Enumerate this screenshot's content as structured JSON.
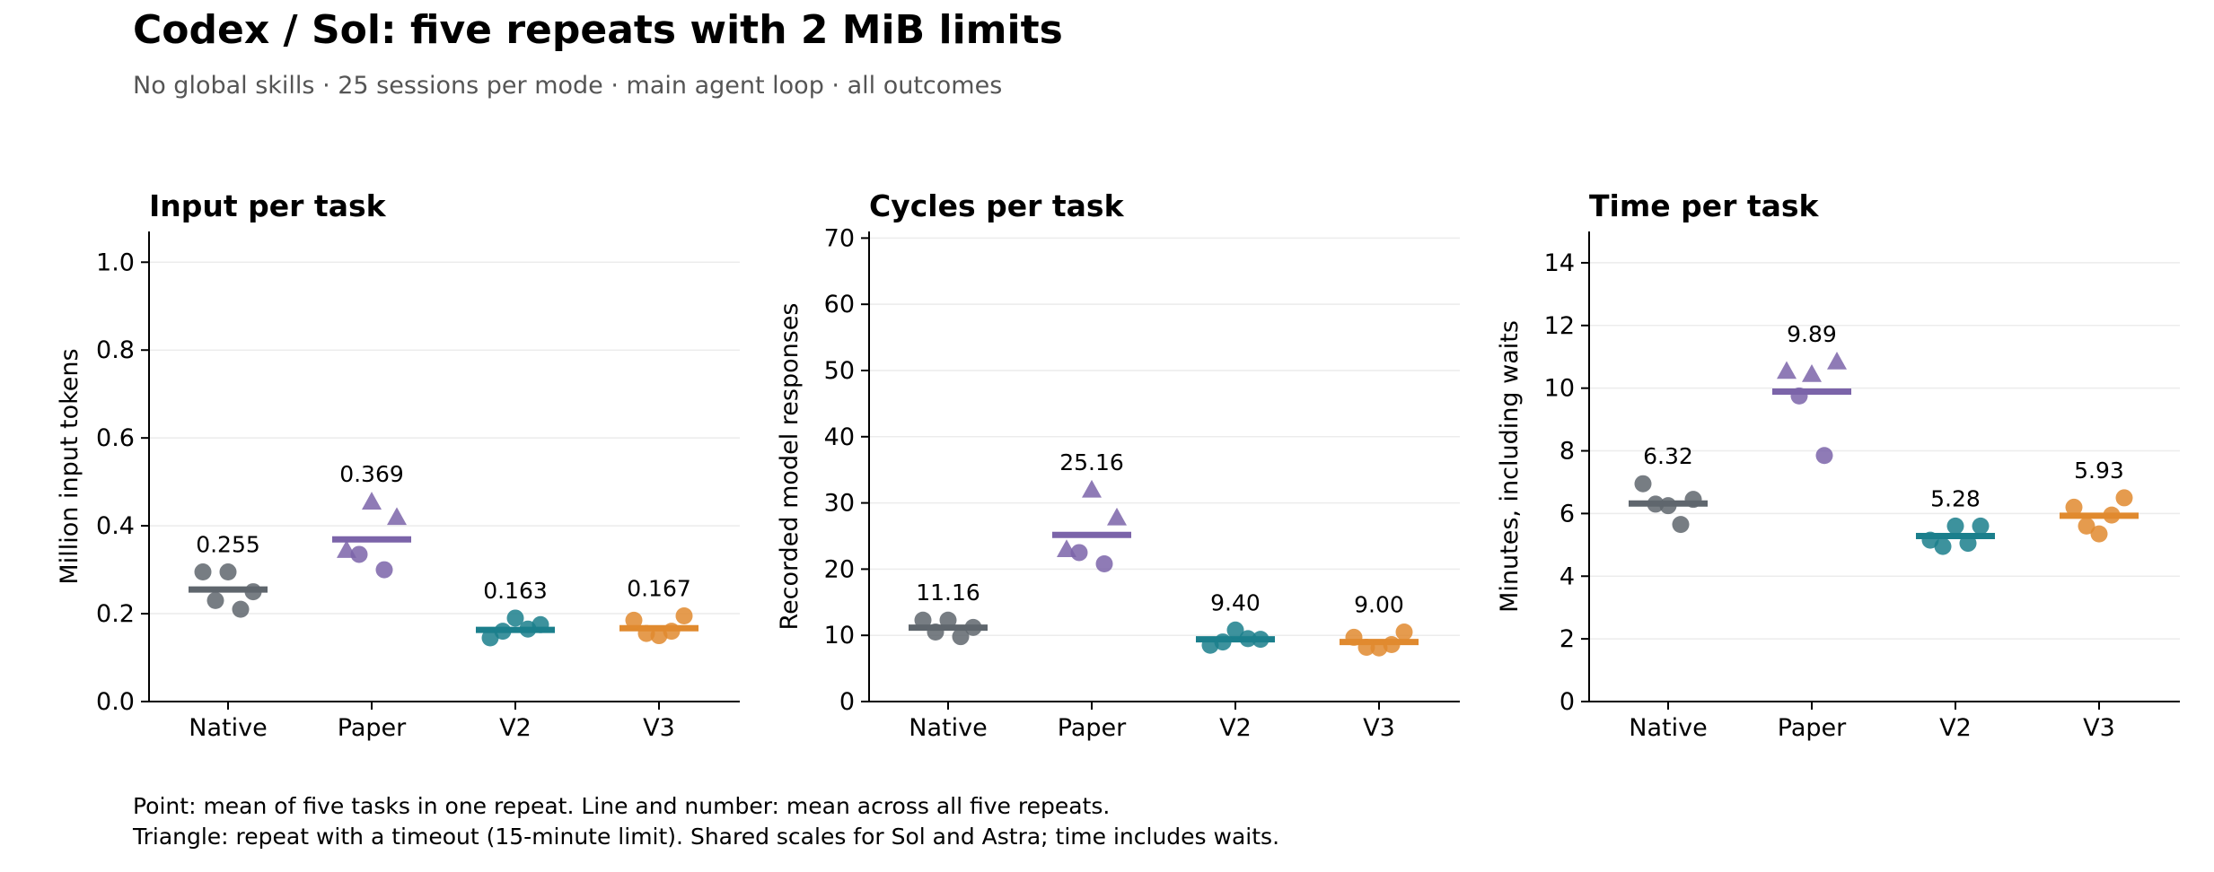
{
  "title": "Codex / Sol: five repeats with 2 MiB limits",
  "subtitle": "No global skills · 25 sessions per mode · main agent loop · all outcomes",
  "notes": [
    "Point: mean of five tasks in one repeat. Line and number: mean across all five repeats.",
    "Triangle: repeat with a timeout (15-minute limit). Shared scales for Sol and Astra; time includes waits."
  ],
  "colors": {
    "Native": "#5f666d",
    "Paper": "#7b64a9",
    "V2": "#1b7f8c",
    "V3": "#e08a2f",
    "grid": "#ececec",
    "axis": "#000000"
  },
  "chart_data": [
    {
      "type": "scatter",
      "title": "Input per task",
      "xlabel": "",
      "ylabel": "Million input tokens",
      "categories": [
        "Native",
        "Paper",
        "V2",
        "V3"
      ],
      "ylim": [
        0,
        1.07
      ],
      "yticks": [
        0.0,
        0.2,
        0.4,
        0.6,
        0.8,
        1.0
      ],
      "tick_format": "0.0",
      "grid": true,
      "means": [
        0.255,
        0.369,
        0.163,
        0.167
      ],
      "mean_labels": [
        "0.255",
        "0.369",
        "0.163",
        "0.167"
      ],
      "points": [
        [
          {
            "y": 0.295,
            "t": false
          },
          {
            "y": 0.23,
            "t": false
          },
          {
            "y": 0.295,
            "t": false
          },
          {
            "y": 0.21,
            "t": false
          },
          {
            "y": 0.25,
            "t": false
          }
        ],
        [
          {
            "y": 0.345,
            "t": true
          },
          {
            "y": 0.335,
            "t": false
          },
          {
            "y": 0.455,
            "t": true
          },
          {
            "y": 0.3,
            "t": false
          },
          {
            "y": 0.42,
            "t": true
          }
        ],
        [
          {
            "y": 0.145,
            "t": false
          },
          {
            "y": 0.16,
            "t": false
          },
          {
            "y": 0.19,
            "t": false
          },
          {
            "y": 0.165,
            "t": false
          },
          {
            "y": 0.175,
            "t": false
          }
        ],
        [
          {
            "y": 0.185,
            "t": false
          },
          {
            "y": 0.155,
            "t": false
          },
          {
            "y": 0.15,
            "t": false
          },
          {
            "y": 0.16,
            "t": false
          },
          {
            "y": 0.195,
            "t": false
          }
        ]
      ]
    },
    {
      "type": "scatter",
      "title": "Cycles per task",
      "xlabel": "",
      "ylabel": "Recorded model responses",
      "categories": [
        "Native",
        "Paper",
        "V2",
        "V3"
      ],
      "ylim": [
        0,
        71
      ],
      "yticks": [
        0,
        10,
        20,
        30,
        40,
        50,
        60,
        70
      ],
      "tick_format": "0",
      "grid": true,
      "means": [
        11.16,
        25.16,
        9.4,
        9.0
      ],
      "mean_labels": [
        "11.16",
        "25.16",
        "9.40",
        "9.00"
      ],
      "points": [
        [
          {
            "y": 12.3,
            "t": false
          },
          {
            "y": 10.5,
            "t": false
          },
          {
            "y": 12.3,
            "t": false
          },
          {
            "y": 9.8,
            "t": false
          },
          {
            "y": 11.2,
            "t": false
          }
        ],
        [
          {
            "y": 23.0,
            "t": true
          },
          {
            "y": 22.5,
            "t": false
          },
          {
            "y": 32.0,
            "t": true
          },
          {
            "y": 20.8,
            "t": false
          },
          {
            "y": 27.8,
            "t": true
          }
        ],
        [
          {
            "y": 8.5,
            "t": false
          },
          {
            "y": 9.0,
            "t": false
          },
          {
            "y": 10.8,
            "t": false
          },
          {
            "y": 9.5,
            "t": false
          },
          {
            "y": 9.4,
            "t": false
          }
        ],
        [
          {
            "y": 9.7,
            "t": false
          },
          {
            "y": 8.2,
            "t": false
          },
          {
            "y": 8.1,
            "t": false
          },
          {
            "y": 8.6,
            "t": false
          },
          {
            "y": 10.5,
            "t": false
          }
        ]
      ]
    },
    {
      "type": "scatter",
      "title": "Time per task",
      "xlabel": "",
      "ylabel": "Minutes, including waits",
      "categories": [
        "Native",
        "Paper",
        "V2",
        "V3"
      ],
      "ylim": [
        0,
        15
      ],
      "yticks": [
        0,
        2,
        4,
        6,
        8,
        10,
        12,
        14
      ],
      "tick_format": "0",
      "grid": true,
      "means": [
        6.32,
        9.89,
        5.28,
        5.93
      ],
      "mean_labels": [
        "6.32",
        "9.89",
        "5.28",
        "5.93"
      ],
      "points": [
        [
          {
            "y": 6.95,
            "t": false
          },
          {
            "y": 6.3,
            "t": false
          },
          {
            "y": 6.25,
            "t": false
          },
          {
            "y": 5.65,
            "t": false
          },
          {
            "y": 6.45,
            "t": false
          }
        ],
        [
          {
            "y": 10.55,
            "t": true
          },
          {
            "y": 9.75,
            "t": false
          },
          {
            "y": 10.45,
            "t": true
          },
          {
            "y": 7.85,
            "t": false
          },
          {
            "y": 10.85,
            "t": true
          }
        ],
        [
          {
            "y": 5.15,
            "t": false
          },
          {
            "y": 4.95,
            "t": false
          },
          {
            "y": 5.6,
            "t": false
          },
          {
            "y": 5.05,
            "t": false
          },
          {
            "y": 5.6,
            "t": false
          }
        ],
        [
          {
            "y": 6.2,
            "t": false
          },
          {
            "y": 5.6,
            "t": false
          },
          {
            "y": 5.35,
            "t": false
          },
          {
            "y": 5.95,
            "t": false
          },
          {
            "y": 6.5,
            "t": false
          }
        ]
      ]
    }
  ]
}
